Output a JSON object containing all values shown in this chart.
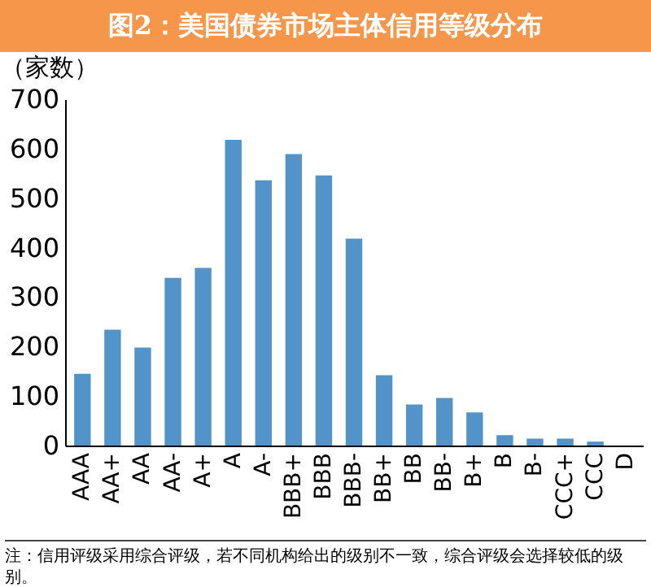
{
  "chart_data": {
    "type": "bar",
    "title": "图2：美国债券市场主体信用等级分布",
    "ylabel": "（家数）",
    "categories": [
      "AAA",
      "AA+",
      "AA",
      "AA-",
      "A+",
      "A",
      "A-",
      "BBB+",
      "BBB",
      "BBB-",
      "BB+",
      "BB",
      "BB-",
      "B+",
      "B",
      "B-",
      "CCC+",
      "CCC",
      "D"
    ],
    "values": [
      145,
      234,
      198,
      339,
      359,
      618,
      536,
      589,
      546,
      418,
      142,
      83,
      96,
      67,
      21,
      14,
      14,
      8,
      0
    ],
    "color": "#5293c9",
    "ylim": [
      0,
      700
    ],
    "yticks": [
      0,
      100,
      200,
      300,
      400,
      500,
      600,
      700
    ],
    "grid": false,
    "annotations": [
      "注：信用评级采用综合评级，若不同机构给出的级别不一致，综合评级会选择较低的级别。"
    ]
  }
}
